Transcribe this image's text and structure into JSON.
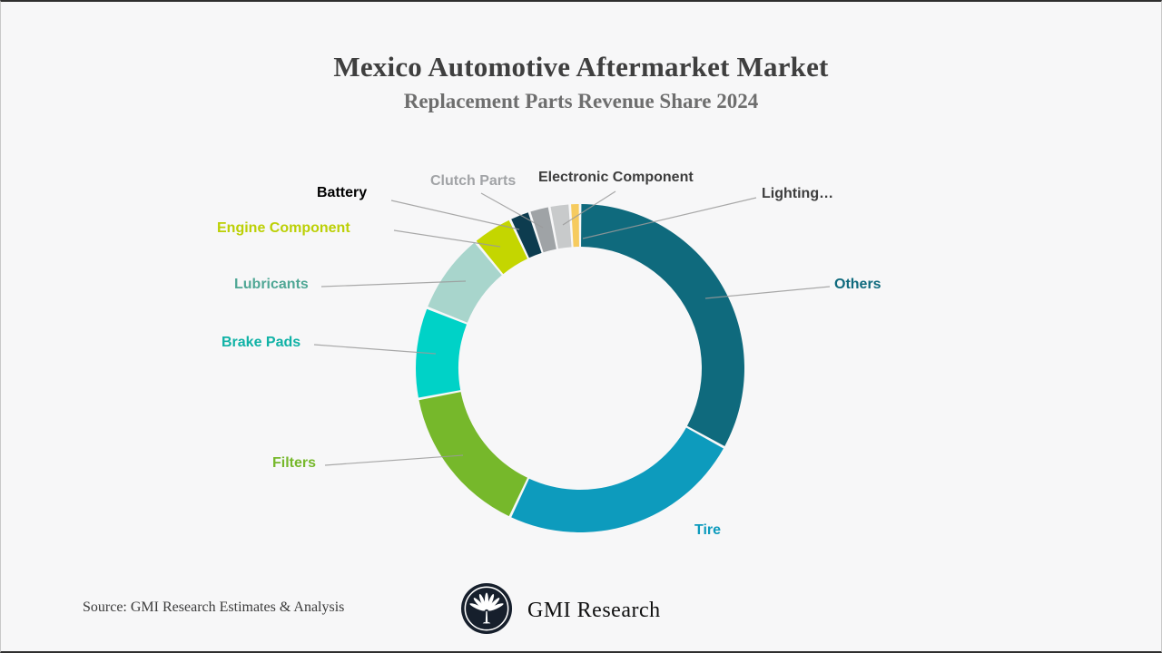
{
  "header": {
    "title": "Mexico Automotive Aftermarket Market",
    "subtitle": "Replacement Parts Revenue Share 2024"
  },
  "chart_data": {
    "type": "pie",
    "subtype": "donut",
    "title": "Mexico Automotive Aftermarket Market",
    "subtitle": "Replacement Parts Revenue Share 2024",
    "value_note": "revenue share % estimated from arc angles; numeric values are not printed on the chart",
    "start_angle_deg": 0,
    "direction": "clockwise",
    "legend": "none (direct category labels with leader lines)",
    "slices": [
      {
        "label": "Others",
        "value": 33,
        "color": "#0f6a7d",
        "label_color": "#0f6a7d"
      },
      {
        "label": "Tire",
        "value": 24,
        "color": "#0d9bbd",
        "label_color": "#0d9bbd"
      },
      {
        "label": "Filters",
        "value": 15,
        "color": "#76b82b",
        "label_color": "#76b82b"
      },
      {
        "label": "Brake Pads",
        "value": 9,
        "color": "#00d2c7",
        "label_color": "#10b2a6"
      },
      {
        "label": "Lubricants",
        "value": 8,
        "color": "#a8d5cc",
        "label_color": "#4fa795"
      },
      {
        "label": "Engine Component",
        "value": 4,
        "color": "#c4d600",
        "label_color": "#bcd005"
      },
      {
        "label": "Battery",
        "value": 2,
        "color": "#0d3c4f",
        "label_color": "#000000"
      },
      {
        "label": "Clutch Parts",
        "value": 2,
        "color": "#9fa3a6",
        "label_color": "#a1a3a6"
      },
      {
        "label": "Electronic Component",
        "value": 2,
        "color": "#c8cacb",
        "label_color": "#3d3d3d"
      },
      {
        "label": "Lighting…",
        "value": 1,
        "color": "#f6cb5f",
        "label_color": "#3d3d3d"
      }
    ]
  },
  "footer": {
    "source": "Source: GMI Research Estimates & Analysis",
    "brand": "GMI Research"
  },
  "colors": {
    "background": "#f7f7f8",
    "title": "#3f3f3f",
    "subtitle": "#6e6e6e",
    "leader_line": "#9b9b9b",
    "logo_bg": "#161f2c"
  }
}
